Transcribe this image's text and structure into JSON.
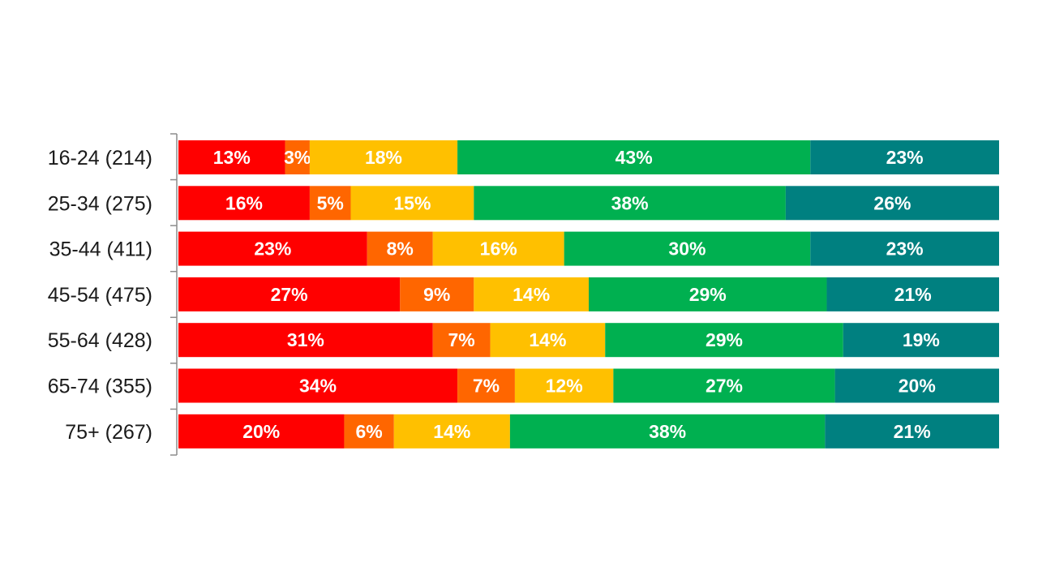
{
  "chart_data": {
    "type": "bar",
    "orientation": "horizontal",
    "stacked": true,
    "categories": [
      "16-24 (214)",
      "25-34 (275)",
      "35-44 (411)",
      "45-54 (475)",
      "55-64 (428)",
      "65-74 (355)",
      "75+ (267)"
    ],
    "series": [
      {
        "values": [
          13,
          16,
          23,
          27,
          31,
          34,
          20
        ],
        "color": "#ff0000"
      },
      {
        "values": [
          3,
          5,
          8,
          9,
          7,
          7,
          6
        ],
        "color": "#ff6600"
      },
      {
        "values": [
          18,
          15,
          16,
          14,
          14,
          12,
          14
        ],
        "color": "#ffc000"
      },
      {
        "values": [
          43,
          38,
          30,
          29,
          29,
          27,
          38
        ],
        "color": "#00b050"
      },
      {
        "values": [
          23,
          26,
          23,
          21,
          19,
          20,
          21
        ],
        "color": "#008080"
      }
    ],
    "data_labels": [
      [
        "13%",
        "3%",
        "18%",
        "43%",
        "23%"
      ],
      [
        "16%",
        "5%",
        "15%",
        "38%",
        "26%"
      ],
      [
        "23%",
        "8%",
        "16%",
        "30%",
        "23%"
      ],
      [
        "27%",
        "9%",
        "14%",
        "29%",
        "21%"
      ],
      [
        "31%",
        "7%",
        "14%",
        "29%",
        "19%"
      ],
      [
        "34%",
        "7%",
        "12%",
        "27%",
        "20%"
      ],
      [
        "20%",
        "6%",
        "14%",
        "38%",
        "21%"
      ]
    ],
    "grid": false,
    "legend": "none"
  }
}
